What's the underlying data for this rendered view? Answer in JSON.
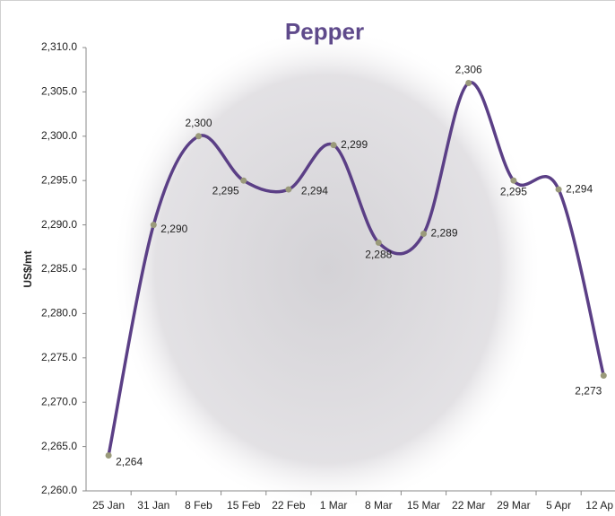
{
  "chart_data": {
    "type": "line",
    "title": "Pepper",
    "y_label": "US$/mt",
    "categories": [
      "25 Jan",
      "31 Jan",
      "8 Feb",
      "15 Feb",
      "22 Feb",
      "1 Mar",
      "8 Mar",
      "15 Mar",
      "22 Mar",
      "29 Mar",
      "5 Apr",
      "12 Ap"
    ],
    "values": [
      2264,
      2290,
      2300,
      2295,
      2294,
      2299,
      2288,
      2289,
      2306,
      2295,
      2294,
      2273
    ],
    "value_labels": [
      "2,264",
      "2,290",
      "2,300",
      "2,295",
      "2,294",
      "2,299",
      "2,288",
      "2,289",
      "2,306",
      "2,295",
      "2,294",
      "2,273"
    ],
    "color": "#5b3f86",
    "marker_color": "#9a9a7a",
    "ylim": [
      2260,
      2310
    ],
    "yticks": [
      {
        "value": 2260,
        "label": "2,260.0"
      },
      {
        "value": 2265,
        "label": "2,265.0"
      },
      {
        "value": 2270,
        "label": "2,270.0"
      },
      {
        "value": 2275,
        "label": "2,275.0"
      },
      {
        "value": 2280,
        "label": "2,280.0"
      },
      {
        "value": 2285,
        "label": "2,285.0"
      },
      {
        "value": 2290,
        "label": "2,290.0"
      },
      {
        "value": 2295,
        "label": "2,295.0"
      },
      {
        "value": 2300,
        "label": "2,300.0"
      },
      {
        "value": 2305,
        "label": "2,305.0"
      },
      {
        "value": 2310,
        "label": "2,310.0"
      }
    ],
    "grid": false
  }
}
